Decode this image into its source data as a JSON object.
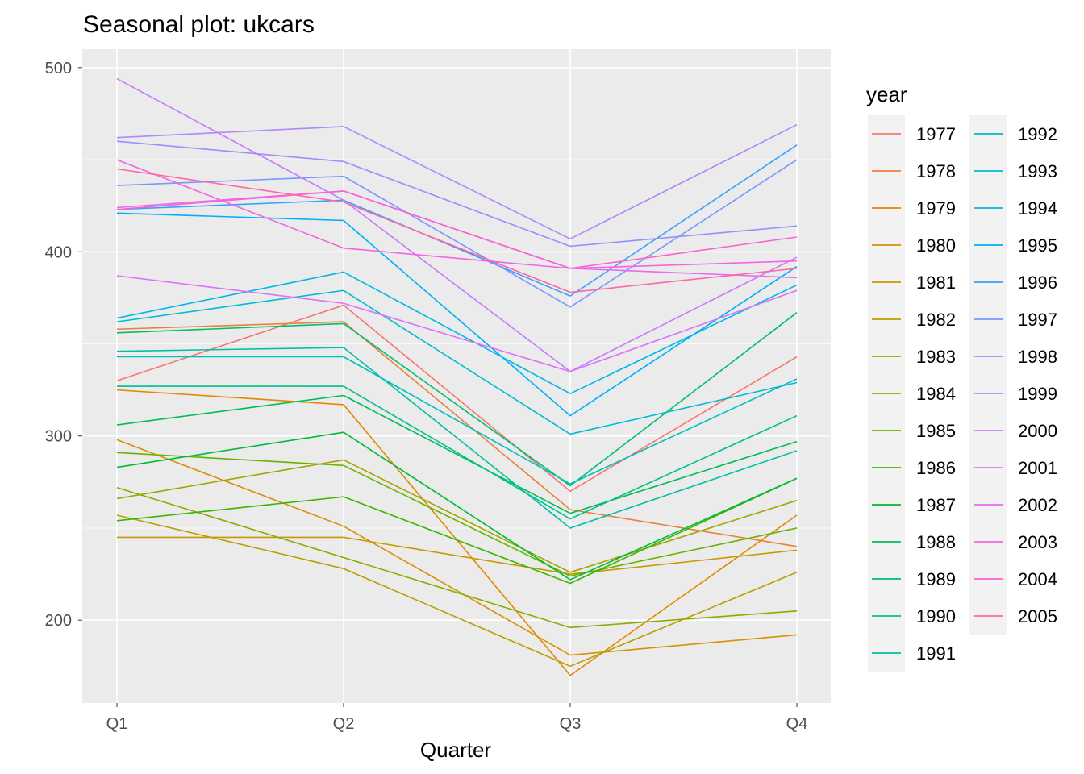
{
  "chart_data": {
    "type": "line",
    "title": "Seasonal plot: ukcars",
    "xlabel": "Quarter",
    "ylabel": "",
    "categories": [
      "Q1",
      "Q2",
      "Q3",
      "Q4"
    ],
    "ylim": [
      155,
      510
    ],
    "yticks": [
      200,
      300,
      400,
      500
    ],
    "grid": true,
    "legend": {
      "title": "year",
      "position": "right",
      "columns": 2
    },
    "series": [
      {
        "name": "1977",
        "color": "#F8766D",
        "values": [
          330,
          371,
          270,
          343
        ]
      },
      {
        "name": "1978",
        "color": "#EE7F39",
        "values": [
          358,
          362,
          260,
          240
        ]
      },
      {
        "name": "1979",
        "color": "#E58700",
        "values": [
          325,
          317,
          170,
          257
        ]
      },
      {
        "name": "1980",
        "color": "#D89000",
        "values": [
          298,
          251,
          181,
          192
        ]
      },
      {
        "name": "1981",
        "color": "#C99800",
        "values": [
          245,
          245,
          225,
          238
        ]
      },
      {
        "name": "1982",
        "color": "#B79F00",
        "values": [
          257,
          228,
          175,
          226
        ]
      },
      {
        "name": "1983",
        "color": "#A3A500",
        "values": [
          266,
          287,
          226,
          265
        ]
      },
      {
        "name": "1984",
        "color": "#8CAB00",
        "values": [
          272,
          234,
          196,
          205
        ]
      },
      {
        "name": "1985",
        "color": "#6BB100",
        "values": [
          291,
          284,
          224,
          250
        ]
      },
      {
        "name": "1986",
        "color": "#39B600",
        "values": [
          254,
          267,
          220,
          277
        ]
      },
      {
        "name": "1987",
        "color": "#00BA38",
        "values": [
          283,
          302,
          222,
          277
        ]
      },
      {
        "name": "1988",
        "color": "#00BC56",
        "values": [
          306,
          322,
          258,
          297
        ]
      },
      {
        "name": "1989",
        "color": "#00BE70",
        "values": [
          356,
          361,
          273,
          367
        ]
      },
      {
        "name": "1990",
        "color": "#00C08B",
        "values": [
          327,
          327,
          255,
          311
        ]
      },
      {
        "name": "1991",
        "color": "#00C0A3",
        "values": [
          346,
          348,
          250,
          292
        ]
      },
      {
        "name": "1992",
        "color": "#00BFBC",
        "values": [
          343,
          343,
          274,
          331
        ]
      },
      {
        "name": "1993",
        "color": "#00BCD2",
        "values": [
          362,
          379,
          301,
          329
        ]
      },
      {
        "name": "1994",
        "color": "#00B8E7",
        "values": [
          364,
          389,
          323,
          382
        ]
      },
      {
        "name": "1995",
        "color": "#00B0F6",
        "values": [
          421,
          417,
          311,
          392
        ]
      },
      {
        "name": "1996",
        "color": "#35A2FF",
        "values": [
          423,
          428,
          376,
          458
        ]
      },
      {
        "name": "1997",
        "color": "#7997FF",
        "values": [
          436,
          441,
          370,
          450
        ]
      },
      {
        "name": "1998",
        "color": "#9590FF",
        "values": [
          460,
          449,
          403,
          414
        ]
      },
      {
        "name": "1999",
        "color": "#B186FF",
        "values": [
          462,
          468,
          407,
          469
        ]
      },
      {
        "name": "2000",
        "color": "#C77CFF",
        "values": [
          494,
          428,
          335,
          397
        ]
      },
      {
        "name": "2001",
        "color": "#DC71FA",
        "values": [
          387,
          372,
          335,
          379
        ]
      },
      {
        "name": "2002",
        "color": "#E76BF3",
        "values": [
          424,
          433,
          391,
          386
        ]
      },
      {
        "name": "2003",
        "color": "#F564E3",
        "values": [
          450,
          402,
          391,
          395
        ]
      },
      {
        "name": "2004",
        "color": "#FD61D1",
        "values": [
          423,
          433,
          391,
          408
        ]
      },
      {
        "name": "2005",
        "color": "#FF67A4",
        "values": [
          445,
          427,
          378,
          391
        ]
      }
    ]
  }
}
